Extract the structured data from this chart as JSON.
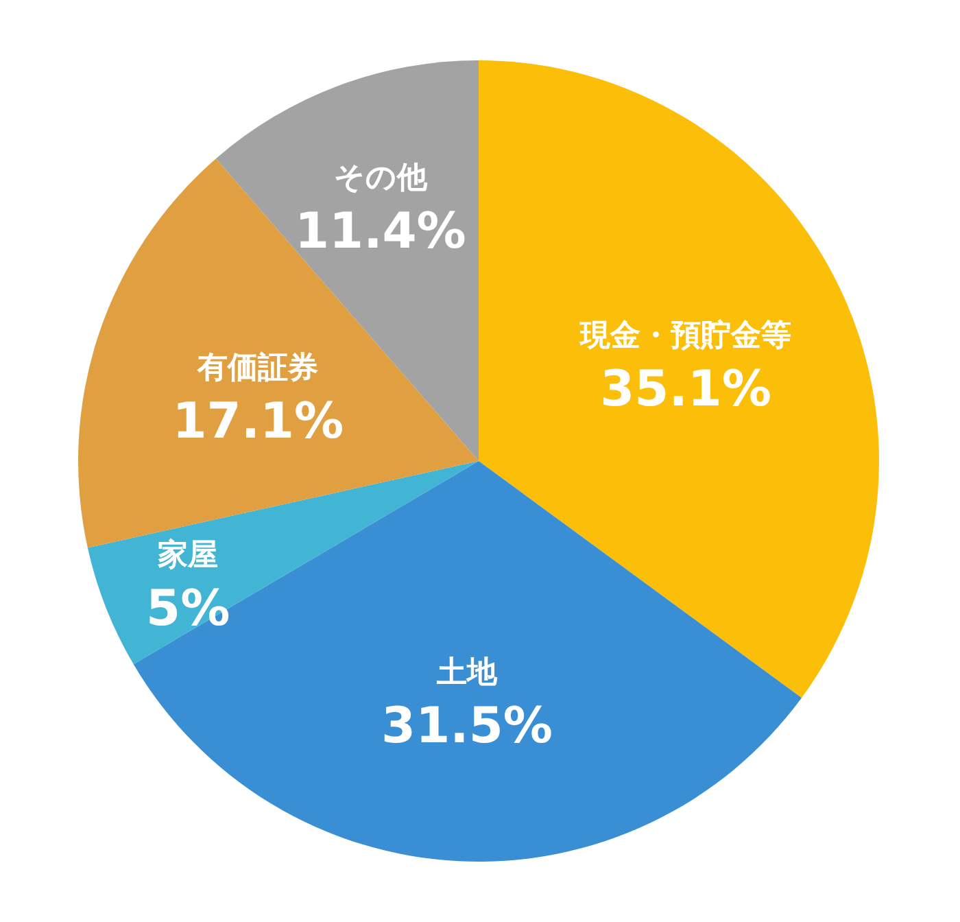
{
  "chart_data": {
    "type": "pie",
    "categories": [
      "現金・預貯金等",
      "土地",
      "家屋",
      "有価証券",
      "その他"
    ],
    "values": [
      35.1,
      31.5,
      5,
      17.1,
      11.4
    ],
    "value_labels": [
      "35.1%",
      "31.5%",
      "5%",
      "17.1%",
      "11.4%"
    ],
    "colors": [
      "#fbbf0a",
      "#3a8fd4",
      "#42b4d4",
      "#e0a041",
      "#a3a3a3"
    ],
    "legend": false
  }
}
